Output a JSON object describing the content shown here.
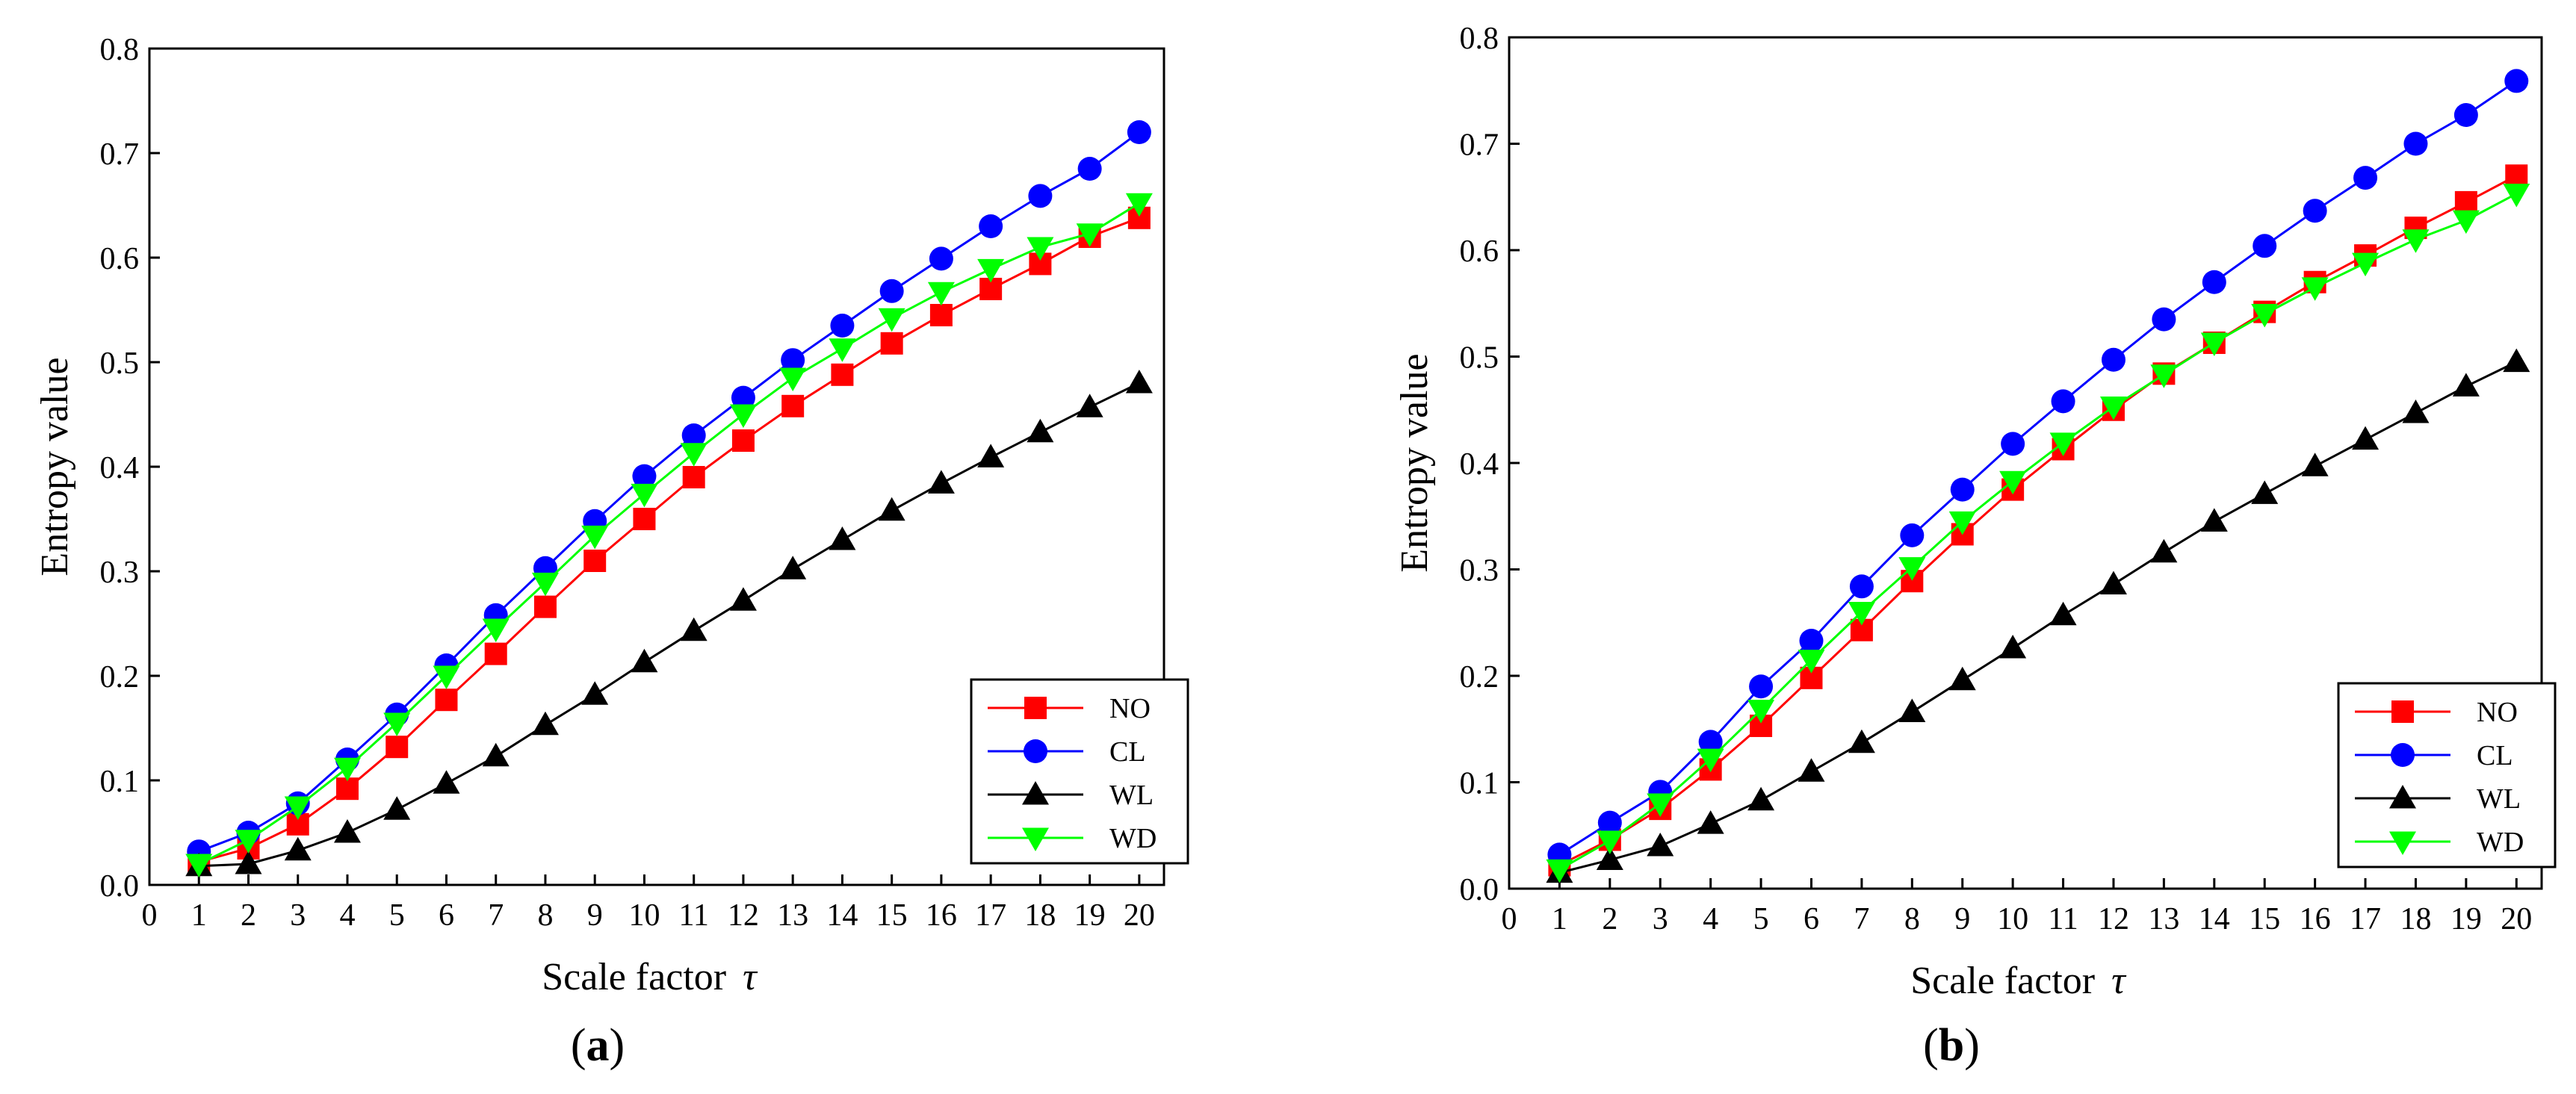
{
  "chart_data": [
    {
      "type": "line",
      "panel_label": "(a)",
      "panel_prefix": "(",
      "panel_letter": "a",
      "panel_suffix": ")",
      "xlabel": "Scale factor",
      "xlabel_symbol": "τ",
      "ylabel": "Entropy value",
      "xlim": [
        0,
        20.5
      ],
      "ylim": [
        0,
        0.8
      ],
      "xticks": [
        "0",
        "1",
        "2",
        "3",
        "4",
        "5",
        "6",
        "7",
        "8",
        "9",
        "10",
        "11",
        "12",
        "13",
        "14",
        "15",
        "16",
        "17",
        "18",
        "19",
        "20"
      ],
      "yticks": [
        "0.0",
        "0.1",
        "0.2",
        "0.3",
        "0.4",
        "0.5",
        "0.6",
        "0.7",
        "0.8"
      ],
      "legend_position": "bottom-right",
      "x": [
        1,
        2,
        3,
        4,
        5,
        6,
        7,
        8,
        9,
        10,
        11,
        12,
        13,
        14,
        15,
        16,
        17,
        18,
        19,
        20
      ],
      "series": [
        {
          "name": "NO",
          "color": "#ff0000",
          "marker": "square",
          "values": [
            0.022,
            0.035,
            0.058,
            0.092,
            0.132,
            0.177,
            0.221,
            0.266,
            0.31,
            0.35,
            0.39,
            0.425,
            0.458,
            0.488,
            0.518,
            0.545,
            0.57,
            0.594,
            0.62,
            0.638
          ]
        },
        {
          "name": "CL",
          "color": "#0000ff",
          "marker": "circle",
          "values": [
            0.032,
            0.05,
            0.078,
            0.12,
            0.163,
            0.21,
            0.258,
            0.303,
            0.348,
            0.391,
            0.43,
            0.466,
            0.502,
            0.535,
            0.568,
            0.599,
            0.63,
            0.659,
            0.685,
            0.72
          ]
        },
        {
          "name": "WL",
          "color": "#000000",
          "marker": "triangle-up",
          "values": [
            0.018,
            0.02,
            0.033,
            0.05,
            0.072,
            0.097,
            0.123,
            0.153,
            0.182,
            0.213,
            0.243,
            0.272,
            0.302,
            0.33,
            0.358,
            0.384,
            0.409,
            0.433,
            0.457,
            0.48
          ]
        },
        {
          "name": "WD",
          "color": "#00ff00",
          "marker": "triangle-down",
          "values": [
            0.02,
            0.043,
            0.075,
            0.112,
            0.155,
            0.2,
            0.245,
            0.289,
            0.334,
            0.374,
            0.413,
            0.45,
            0.485,
            0.513,
            0.542,
            0.567,
            0.589,
            0.61,
            0.623,
            0.652
          ]
        }
      ]
    },
    {
      "type": "line",
      "panel_label": "(b)",
      "panel_prefix": "(",
      "panel_letter": "b",
      "panel_suffix": ")",
      "xlabel": "Scale factor",
      "xlabel_symbol": "τ",
      "ylabel": "Entropy value",
      "xlim": [
        0,
        20.5
      ],
      "ylim": [
        0,
        0.8
      ],
      "xticks": [
        "0",
        "1",
        "2",
        "3",
        "4",
        "5",
        "6",
        "7",
        "8",
        "9",
        "10",
        "11",
        "12",
        "13",
        "14",
        "15",
        "16",
        "17",
        "18",
        "19",
        "20"
      ],
      "yticks": [
        "0.0",
        "0.1",
        "0.2",
        "0.3",
        "0.4",
        "0.5",
        "0.6",
        "0.7",
        "0.8"
      ],
      "legend_position": "bottom-right",
      "x": [
        1,
        2,
        3,
        4,
        5,
        6,
        7,
        8,
        9,
        10,
        11,
        12,
        13,
        14,
        15,
        16,
        17,
        18,
        19,
        20
      ],
      "series": [
        {
          "name": "NO",
          "color": "#ff0000",
          "marker": "square",
          "values": [
            0.022,
            0.046,
            0.075,
            0.112,
            0.153,
            0.198,
            0.243,
            0.289,
            0.333,
            0.375,
            0.413,
            0.45,
            0.484,
            0.513,
            0.542,
            0.57,
            0.595,
            0.621,
            0.645,
            0.67
          ]
        },
        {
          "name": "CL",
          "color": "#0000ff",
          "marker": "circle",
          "values": [
            0.032,
            0.062,
            0.091,
            0.138,
            0.19,
            0.233,
            0.284,
            0.332,
            0.375,
            0.418,
            0.458,
            0.497,
            0.535,
            0.57,
            0.604,
            0.637,
            0.668,
            0.7,
            0.727,
            0.759
          ]
        },
        {
          "name": "WL",
          "color": "#000000",
          "marker": "triangle-up",
          "values": [
            0.015,
            0.027,
            0.04,
            0.061,
            0.083,
            0.11,
            0.137,
            0.166,
            0.196,
            0.226,
            0.257,
            0.286,
            0.316,
            0.345,
            0.371,
            0.397,
            0.422,
            0.447,
            0.472,
            0.495
          ]
        },
        {
          "name": "WD",
          "color": "#00ff00",
          "marker": "triangle-down",
          "values": [
            0.018,
            0.045,
            0.08,
            0.122,
            0.168,
            0.215,
            0.26,
            0.302,
            0.345,
            0.383,
            0.419,
            0.453,
            0.483,
            0.513,
            0.54,
            0.565,
            0.588,
            0.61,
            0.628,
            0.653
          ]
        }
      ]
    }
  ]
}
